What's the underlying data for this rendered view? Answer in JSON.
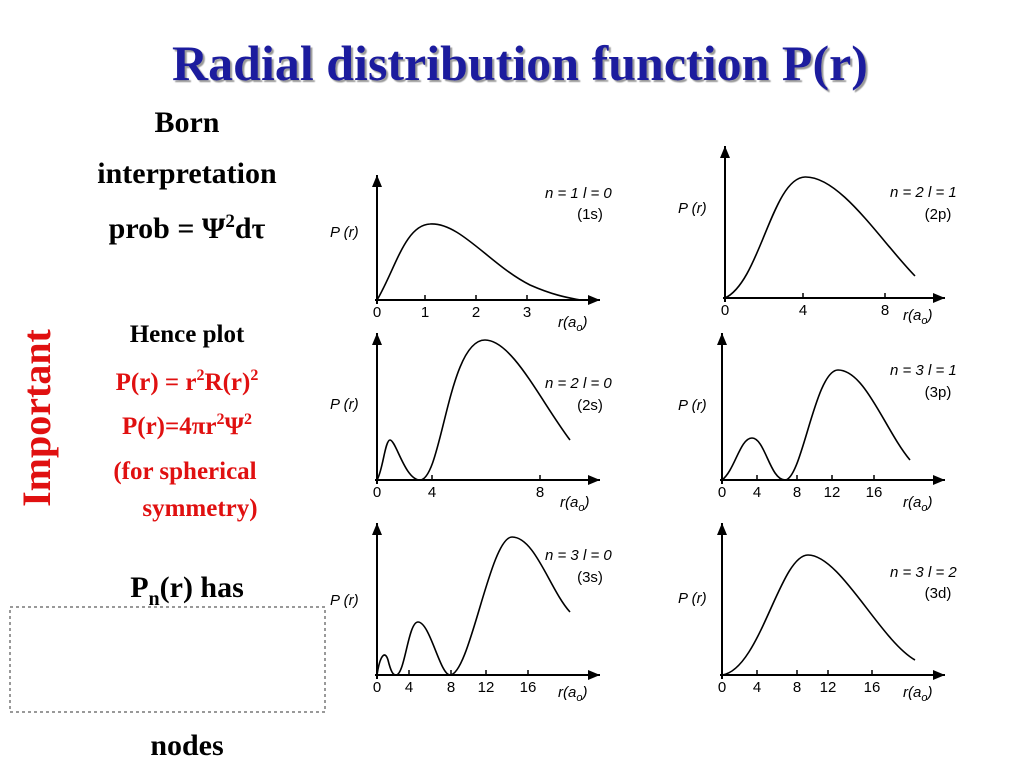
{
  "title": "Radial distribution function P(r)",
  "born": {
    "lines": [
      "Born",
      "interpretation"
    ],
    "prob": [
      "prob = Ψ",
      "2",
      "dτ"
    ]
  },
  "side_label": "Important",
  "hence": {
    "heading": "Hence plot",
    "formula1": [
      "P(r) = r",
      "2",
      "R(r)",
      "2"
    ],
    "formula2": [
      "P(r)=4πr",
      "2",
      "Ψ",
      "2"
    ],
    "note": [
      "(for spherical",
      "symmetry)"
    ]
  },
  "nodes": {
    "top": [
      "P",
      "n",
      "(r) has"
    ],
    "bottom": "nodes"
  },
  "panels": [
    {
      "y_label": "P (r)",
      "state": "n = 1   l = 0",
      "orbital": "(1s)",
      "x_ticks": [
        "0",
        "1",
        "2",
        "3"
      ],
      "x_label": [
        "r(a",
        "o",
        ")"
      ]
    },
    {
      "y_label": "P (r)",
      "state": "n = 2   l = 1",
      "orbital": "(2p)",
      "x_ticks": [
        "0",
        "4",
        "8"
      ],
      "x_label": [
        "r(a",
        "o",
        ")"
      ]
    },
    {
      "y_label": "P (r)",
      "state": "n = 2   l = 0",
      "orbital": "(2s)",
      "x_ticks": [
        "0",
        "4",
        "8"
      ],
      "x_label": [
        "r(a",
        "o",
        ")"
      ]
    },
    {
      "y_label": "P (r)",
      "state": "n = 3   l = 1",
      "orbital": "(3p)",
      "x_ticks": [
        "0",
        "4",
        "8",
        "12",
        "16"
      ],
      "x_label": [
        "r(a",
        "o",
        ")"
      ]
    },
    {
      "y_label": "P (r)",
      "state": "n = 3   l = 0",
      "orbital": "(3s)",
      "x_ticks": [
        "0",
        "4",
        "8",
        "12",
        "16"
      ],
      "x_label": [
        "r(a",
        "o",
        ")"
      ]
    },
    {
      "y_label": "P (r)",
      "state": "n = 3   l = 2",
      "orbital": "(3d)",
      "x_ticks": [
        "0",
        "4",
        "8",
        "12",
        "16"
      ],
      "x_label": [
        "r(a",
        "o",
        ")"
      ]
    }
  ]
}
